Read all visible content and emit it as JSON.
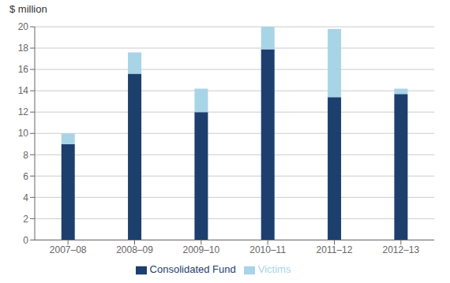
{
  "chart_data": {
    "type": "bar",
    "stacked": true,
    "ylabel": "$ million",
    "categories": [
      "2007–08",
      "2008–09",
      "2009–10",
      "2010–11",
      "2011–12",
      "2012–13"
    ],
    "series": [
      {
        "name": "Consolidated Fund",
        "color": "#1c3f6e",
        "values": [
          9.0,
          15.6,
          12.0,
          17.9,
          13.4,
          13.7
        ]
      },
      {
        "name": "Victims",
        "color": "#a8d4e8",
        "values": [
          1.0,
          2.0,
          2.2,
          2.1,
          6.4,
          0.5
        ]
      }
    ],
    "ylim": [
      0,
      20
    ],
    "yticks": [
      0,
      2,
      4,
      6,
      8,
      10,
      12,
      14,
      16,
      18,
      20
    ],
    "grid": true,
    "legend": "bottom"
  }
}
